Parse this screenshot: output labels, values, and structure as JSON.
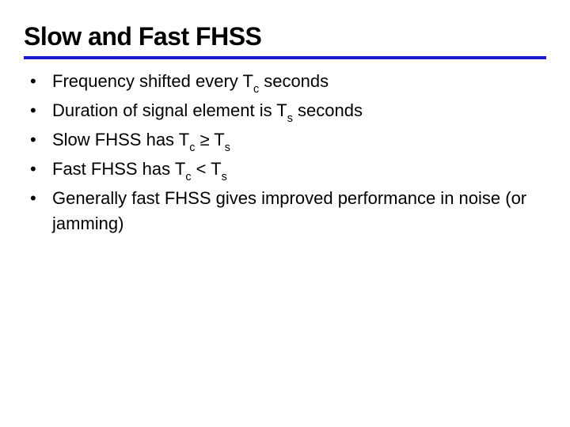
{
  "slide": {
    "title": "Slow and Fast FHSS",
    "title_fontsize": 32,
    "title_color": "#000000",
    "divider_color": "#1a1ac8",
    "divider_height": 4,
    "background_color": "#ffffff",
    "body_fontsize": 22,
    "body_color": "#000000",
    "bullets": [
      {
        "parts": [
          {
            "text": "Frequency shifted every T",
            "sub": false
          },
          {
            "text": "c",
            "sub": true
          },
          {
            "text": " seconds",
            "sub": false
          }
        ]
      },
      {
        "parts": [
          {
            "text": "Duration of signal element is T",
            "sub": false
          },
          {
            "text": "s",
            "sub": true
          },
          {
            "text": " seconds",
            "sub": false
          }
        ]
      },
      {
        "parts": [
          {
            "text": "Slow FHSS has T",
            "sub": false
          },
          {
            "text": "c",
            "sub": true
          },
          {
            "text": " ≥ T",
            "sub": false
          },
          {
            "text": "s",
            "sub": true
          }
        ]
      },
      {
        "parts": [
          {
            "text": "Fast FHSS has T",
            "sub": false
          },
          {
            "text": "c",
            "sub": true
          },
          {
            "text": " < T",
            "sub": false
          },
          {
            "text": "s",
            "sub": true
          }
        ]
      },
      {
        "parts": [
          {
            "text": "Generally fast FHSS gives improved performance in noise (or jamming)",
            "sub": false
          }
        ]
      }
    ],
    "bullet_marker": "•"
  }
}
